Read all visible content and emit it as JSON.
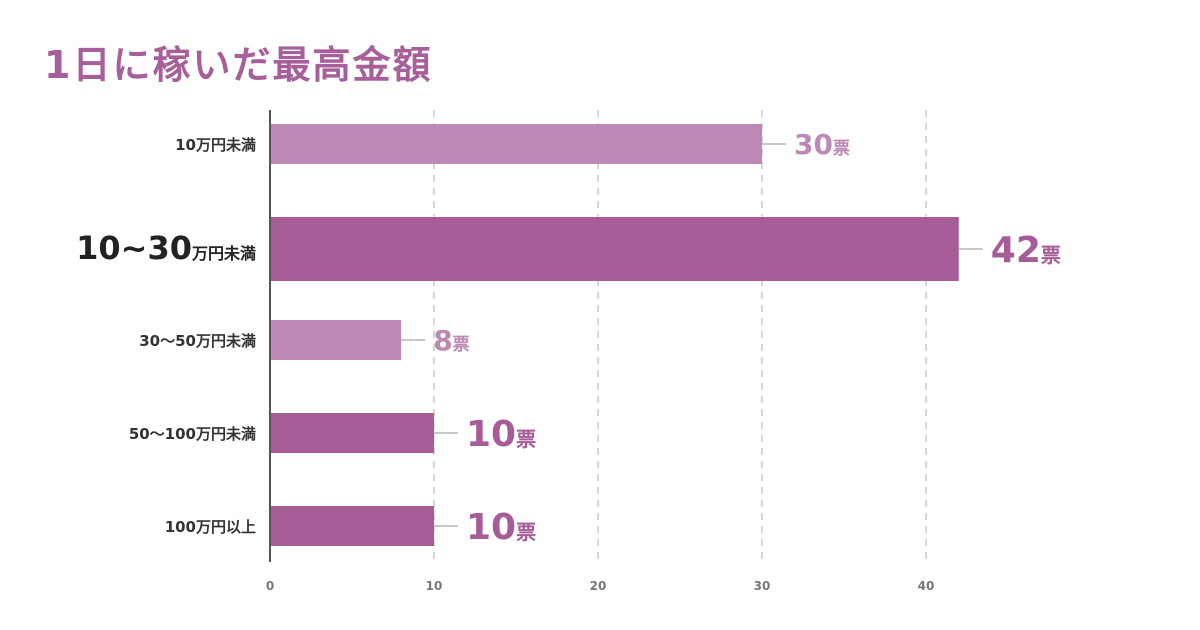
{
  "title": "1日に稼いだ最高金額",
  "chart_data": {
    "type": "bar",
    "orientation": "horizontal",
    "categories": [
      "10万円未満",
      "10~30万円未満",
      "30〜50万円未満",
      "50〜100万円未満",
      "100万円以上"
    ],
    "values": [
      30,
      42,
      8,
      10,
      10
    ],
    "value_unit": "票",
    "xlim": [
      0,
      42
    ],
    "xticks": [
      0,
      10,
      20,
      30,
      40
    ],
    "grid": "vertical-dashed",
    "highlight_index": 1,
    "title": "1日に稼いだ最高金額",
    "xlabel": "",
    "ylabel": ""
  },
  "colors": {
    "title": "#a75f99",
    "bar_dark": "#a65c97",
    "bar_light": "#bd89b4",
    "grid": "#c8c8c8",
    "axis": "#555555"
  }
}
